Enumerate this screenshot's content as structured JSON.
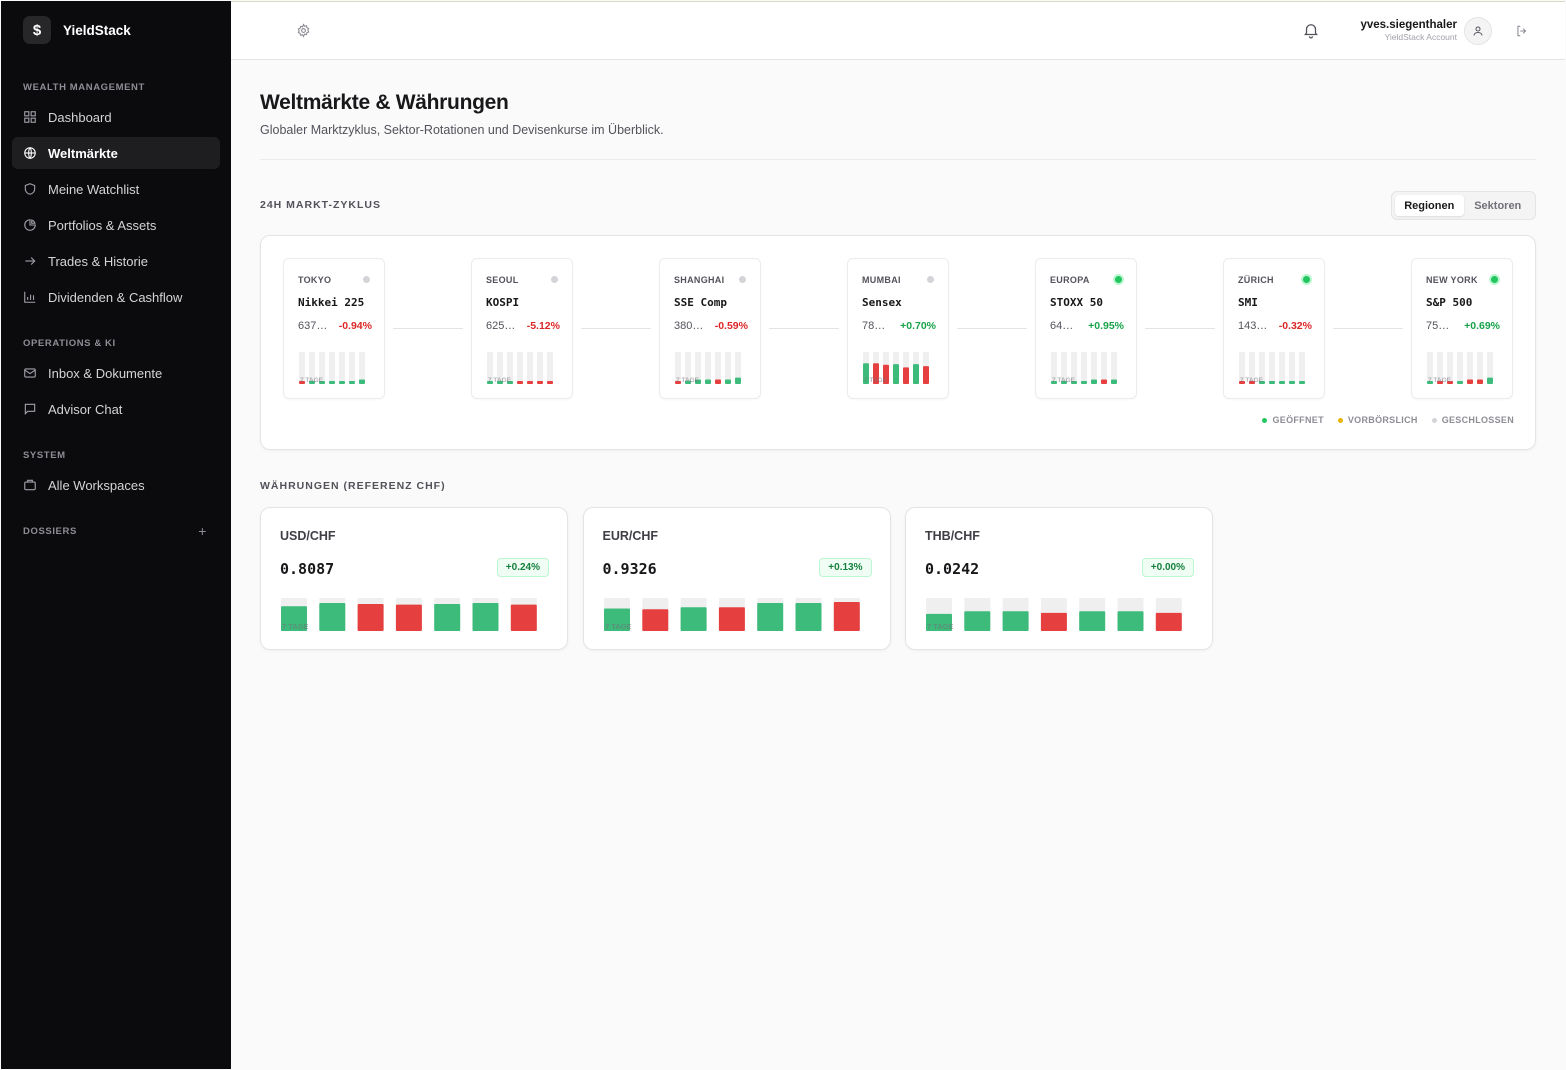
{
  "app": {
    "brand": "YieldStack",
    "brand_logo": "$"
  },
  "sidebar": {
    "sections": [
      {
        "title": "WEALTH MANAGEMENT",
        "items": [
          {
            "label": "Dashboard",
            "icon": "grid-icon",
            "active": false
          },
          {
            "label": "Weltmärkte",
            "icon": "globe-icon",
            "active": true
          },
          {
            "label": "Meine Watchlist",
            "icon": "shield-icon",
            "active": false
          },
          {
            "label": "Portfolios & Assets",
            "icon": "pie-chart-icon",
            "active": false
          },
          {
            "label": "Trades & Historie",
            "icon": "arrow-right-icon",
            "active": false
          },
          {
            "label": "Dividenden & Cashflow",
            "icon": "bar-chart-icon",
            "active": false
          }
        ]
      },
      {
        "title": "OPERATIONS & KI",
        "items": [
          {
            "label": "Inbox & Dokumente",
            "icon": "mail-icon",
            "active": false
          },
          {
            "label": "Advisor Chat",
            "icon": "chat-icon",
            "active": false
          }
        ]
      },
      {
        "title": "SYSTEM",
        "items": [
          {
            "label": "Alle Workspaces",
            "icon": "briefcase-icon",
            "active": false
          }
        ]
      },
      {
        "title": "DOSSIERS",
        "items": [],
        "add": "+"
      }
    ]
  },
  "topbar": {
    "user_name": "yves.siegenthaler",
    "user_sub": "YieldStack Account"
  },
  "page": {
    "title": "Weltmärkte & Währungen",
    "subtitle": "Globaler Marktzyklus, Sektor-Rotationen und Devisenkurse im Überblick."
  },
  "cycle": {
    "label": "24H MARKT-ZYKLUS",
    "toggle": [
      "Regionen",
      "Sektoren"
    ],
    "toggle_active": 0,
    "bars_label": "7 TAGE",
    "markets": [
      {
        "city": "TOKYO",
        "index": "Nikkei 225",
        "value": "637…",
        "change": "-0.94%",
        "open": false,
        "bars": [
          {
            "dir": "neg",
            "v": 0.08
          },
          {
            "dir": "pos",
            "v": 0.08
          },
          {
            "dir": "pos",
            "v": 0.08
          },
          {
            "dir": "pos",
            "v": 0.08
          },
          {
            "dir": "pos",
            "v": 0.08
          },
          {
            "dir": "pos",
            "v": 0.08
          },
          {
            "dir": "pos",
            "v": 0.14
          }
        ]
      },
      {
        "city": "SEOUL",
        "index": "KOSPI",
        "value": "625…",
        "change": "-5.12%",
        "open": false,
        "bars": [
          {
            "dir": "pos",
            "v": 0.08
          },
          {
            "dir": "pos",
            "v": 0.08
          },
          {
            "dir": "pos",
            "v": 0.08
          },
          {
            "dir": "neg",
            "v": 0.08
          },
          {
            "dir": "neg",
            "v": 0.08
          },
          {
            "dir": "neg",
            "v": 0.08
          },
          {
            "dir": "neg",
            "v": 0.08
          }
        ]
      },
      {
        "city": "SHANGHAI",
        "index": "SSE Comp",
        "value": "380…",
        "change": "-0.59%",
        "open": false,
        "bars": [
          {
            "dir": "neg",
            "v": 0.08
          },
          {
            "dir": "pos",
            "v": 0.1
          },
          {
            "dir": "pos",
            "v": 0.14
          },
          {
            "dir": "pos",
            "v": 0.14
          },
          {
            "dir": "neg",
            "v": 0.14
          },
          {
            "dir": "pos",
            "v": 0.14
          },
          {
            "dir": "pos",
            "v": 0.2
          }
        ]
      },
      {
        "city": "MUMBAI",
        "index": "Sensex",
        "value": "78…",
        "change": "+0.70%",
        "open": false,
        "bars": [
          {
            "dir": "pos",
            "v": 0.65
          },
          {
            "dir": "neg",
            "v": 0.65
          },
          {
            "dir": "neg",
            "v": 0.6
          },
          {
            "dir": "pos",
            "v": 0.62
          },
          {
            "dir": "neg",
            "v": 0.52
          },
          {
            "dir": "pos",
            "v": 0.62
          },
          {
            "dir": "neg",
            "v": 0.56
          }
        ]
      },
      {
        "city": "EUROPA",
        "index": "STOXX 50",
        "value": "64…",
        "change": "+0.95%",
        "open": true,
        "bars": [
          {
            "dir": "pos",
            "v": 0.08
          },
          {
            "dir": "pos",
            "v": 0.08
          },
          {
            "dir": "pos",
            "v": 0.08
          },
          {
            "dir": "pos",
            "v": 0.08
          },
          {
            "dir": "pos",
            "v": 0.14
          },
          {
            "dir": "neg",
            "v": 0.14
          },
          {
            "dir": "pos",
            "v": 0.14
          }
        ]
      },
      {
        "city": "ZÜRICH",
        "index": "SMI",
        "value": "143…",
        "change": "-0.32%",
        "open": true,
        "bars": [
          {
            "dir": "neg",
            "v": 0.08
          },
          {
            "dir": "neg",
            "v": 0.08
          },
          {
            "dir": "pos",
            "v": 0.08
          },
          {
            "dir": "pos",
            "v": 0.08
          },
          {
            "dir": "pos",
            "v": 0.08
          },
          {
            "dir": "pos",
            "v": 0.08
          },
          {
            "dir": "pos",
            "v": 0.08
          }
        ]
      },
      {
        "city": "NEW YORK",
        "index": "S&P 500",
        "value": "75…",
        "change": "+0.69%",
        "open": true,
        "bars": [
          {
            "dir": "pos",
            "v": 0.08
          },
          {
            "dir": "neg",
            "v": 0.08
          },
          {
            "dir": "neg",
            "v": 0.08
          },
          {
            "dir": "pos",
            "v": 0.08
          },
          {
            "dir": "neg",
            "v": 0.14
          },
          {
            "dir": "neg",
            "v": 0.14
          },
          {
            "dir": "pos",
            "v": 0.2
          }
        ]
      }
    ],
    "legend": [
      {
        "label": "GEÖFFNET",
        "color": "#22c55e"
      },
      {
        "label": "VORBÖRSLICH",
        "color": "#eab308"
      },
      {
        "label": "GESCHLOSSEN",
        "color": "#d4d4d8"
      }
    ]
  },
  "fx": {
    "label": "WÄHRUNGEN (REFERENZ CHF)",
    "bars_label": "7 TAGE",
    "pairs": [
      {
        "pair": "USD/CHF",
        "rate": "0.8087",
        "change": "+0.24%",
        "bars": [
          {
            "dir": "pos",
            "v": 0.75
          },
          {
            "dir": "pos",
            "v": 0.85
          },
          {
            "dir": "neg",
            "v": 0.82
          },
          {
            "dir": "neg",
            "v": 0.8
          },
          {
            "dir": "pos",
            "v": 0.82
          },
          {
            "dir": "pos",
            "v": 0.85
          },
          {
            "dir": "neg",
            "v": 0.8
          }
        ]
      },
      {
        "pair": "EUR/CHF",
        "rate": "0.9326",
        "change": "+0.13%",
        "bars": [
          {
            "dir": "pos",
            "v": 0.68
          },
          {
            "dir": "neg",
            "v": 0.66
          },
          {
            "dir": "pos",
            "v": 0.72
          },
          {
            "dir": "neg",
            "v": 0.72
          },
          {
            "dir": "pos",
            "v": 0.85
          },
          {
            "dir": "pos",
            "v": 0.85
          },
          {
            "dir": "neg",
            "v": 0.88
          }
        ]
      },
      {
        "pair": "THB/CHF",
        "rate": "0.0242",
        "change": "+0.00%",
        "bars": [
          {
            "dir": "pos",
            "v": 0.52
          },
          {
            "dir": "pos",
            "v": 0.6
          },
          {
            "dir": "pos",
            "v": 0.6
          },
          {
            "dir": "neg",
            "v": 0.55
          },
          {
            "dir": "pos",
            "v": 0.6
          },
          {
            "dir": "pos",
            "v": 0.6
          },
          {
            "dir": "neg",
            "v": 0.55
          }
        ]
      }
    ]
  },
  "colors": {
    "pos": "#3dbb7b",
    "neg": "#e5403f",
    "track": "#efefef"
  }
}
